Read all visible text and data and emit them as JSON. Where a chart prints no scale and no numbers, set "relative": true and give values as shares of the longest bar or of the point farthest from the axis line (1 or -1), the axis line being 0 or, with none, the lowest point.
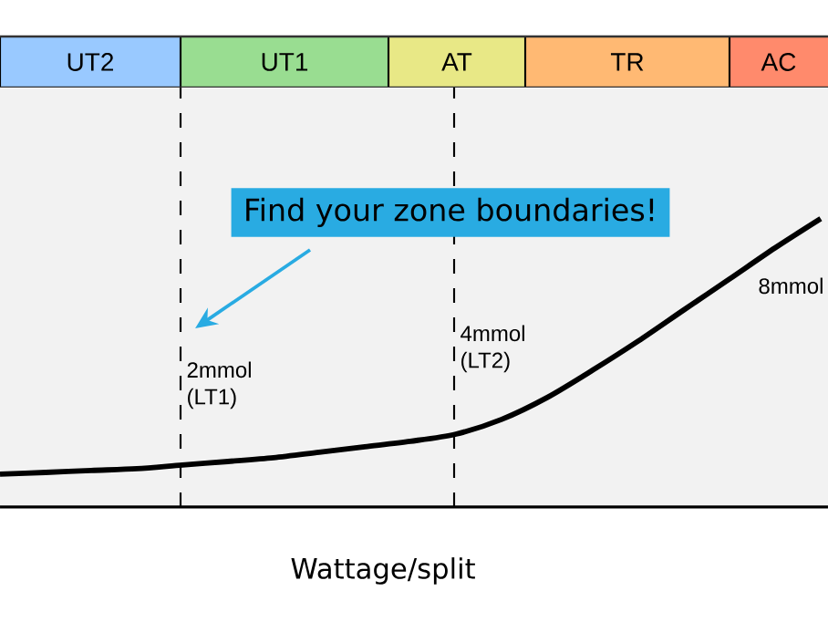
{
  "chart_data": {
    "type": "line",
    "relative": true,
    "xlabel": "Wattage/split",
    "categories": [
      null,
      null,
      null,
      null,
      null,
      null,
      null,
      null,
      null,
      null,
      null,
      null,
      null,
      null,
      null,
      null,
      null,
      null,
      null
    ],
    "series": [
      {
        "color": "#000000",
        "values": [
          0.114,
          0.12,
          0.127,
          0.133,
          0.146,
          0.158,
          0.171,
          0.19,
          0.209,
          0.228,
          0.253,
          0.304,
          0.38,
          0.475,
          0.576,
          0.684,
          0.791,
          0.899,
          1.0
        ]
      }
    ],
    "annotations": [
      "UT2",
      "UT1",
      "AT",
      "TR",
      "AC",
      "2mmol (LT1)",
      "4mmol (LT2)",
      "Find your zone boundaries!",
      "8mmol"
    ]
  }
}
